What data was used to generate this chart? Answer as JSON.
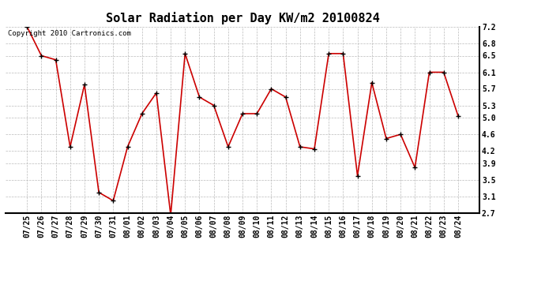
{
  "title": "Solar Radiation per Day KW/m2 20100824",
  "copyright_text": "Copyright 2010 Cartronics.com",
  "dates": [
    "07/25",
    "07/26",
    "07/27",
    "07/28",
    "07/29",
    "07/30",
    "07/31",
    "08/01",
    "08/02",
    "08/03",
    "08/04",
    "08/05",
    "08/06",
    "08/07",
    "08/08",
    "08/09",
    "08/10",
    "08/11",
    "08/12",
    "08/13",
    "08/14",
    "08/15",
    "08/16",
    "08/17",
    "08/18",
    "08/19",
    "08/20",
    "08/21",
    "08/22",
    "08/23",
    "08/24"
  ],
  "values": [
    7.2,
    6.5,
    6.4,
    4.3,
    5.8,
    3.2,
    3.0,
    4.3,
    5.1,
    5.6,
    2.65,
    6.55,
    5.5,
    5.3,
    4.3,
    5.1,
    5.1,
    5.7,
    5.5,
    4.3,
    4.25,
    6.55,
    6.55,
    3.6,
    5.85,
    4.5,
    4.6,
    3.8,
    6.1,
    6.1,
    5.05
  ],
  "ylim": [
    2.7,
    7.2
  ],
  "yticks": [
    2.7,
    3.1,
    3.5,
    3.9,
    4.2,
    4.6,
    5.0,
    5.3,
    5.7,
    6.1,
    6.5,
    6.8,
    7.2
  ],
  "line_color": "#cc0000",
  "marker_color": "#000000",
  "background_color": "#ffffff",
  "grid_color": "#bbbbbb",
  "title_fontsize": 11,
  "tick_fontsize": 7,
  "copyright_fontsize": 6.5
}
